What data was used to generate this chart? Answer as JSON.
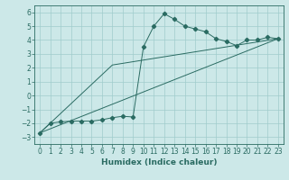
{
  "xlabel": "Humidex (Indice chaleur)",
  "ylabel": "",
  "background_color": "#cce8e8",
  "line_color": "#2a6b62",
  "grid_color": "#a0cccc",
  "xlim": [
    -0.5,
    23.5
  ],
  "ylim": [
    -3.5,
    6.5
  ],
  "xticks": [
    0,
    1,
    2,
    3,
    4,
    5,
    6,
    7,
    8,
    9,
    10,
    11,
    12,
    13,
    14,
    15,
    16,
    17,
    18,
    19,
    20,
    21,
    22,
    23
  ],
  "yticks": [
    -3,
    -2,
    -1,
    0,
    1,
    2,
    3,
    4,
    5,
    6
  ],
  "line1_x": [
    0,
    1,
    2,
    3,
    4,
    5,
    6,
    7,
    8,
    9,
    10,
    11,
    12,
    13,
    14,
    15,
    16,
    17,
    18,
    19,
    20,
    21,
    22,
    23
  ],
  "line1_y": [
    -2.7,
    -2.0,
    -1.9,
    -1.85,
    -1.85,
    -1.85,
    -1.75,
    -1.6,
    -1.5,
    -1.55,
    3.5,
    5.0,
    5.9,
    5.5,
    5.0,
    4.8,
    4.6,
    4.1,
    3.9,
    3.6,
    4.0,
    4.0,
    4.2,
    4.1
  ],
  "line2_x": [
    0,
    23
  ],
  "line2_y": [
    -2.7,
    4.1
  ],
  "line3_x": [
    0,
    7,
    23
  ],
  "line3_y": [
    -2.7,
    2.2,
    4.1
  ],
  "marker": "D",
  "markersize": 2.2,
  "tick_fontsize": 5.5,
  "xlabel_fontsize": 6.5
}
